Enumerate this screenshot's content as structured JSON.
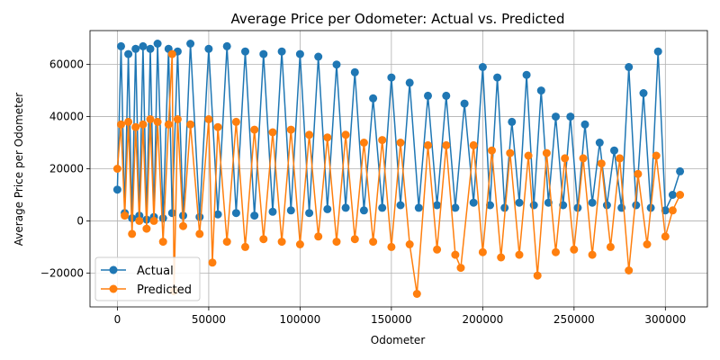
{
  "chart_data": {
    "type": "line",
    "title": "Average Price per Odometer: Actual vs. Predicted",
    "xlabel": "Odometer",
    "ylabel": "Average Price per Odometer",
    "xlim": [
      -15000,
      323000
    ],
    "ylim": [
      -33000,
      73000
    ],
    "xticks": [
      0,
      50000,
      100000,
      150000,
      200000,
      250000,
      300000
    ],
    "yticks": [
      -20000,
      0,
      20000,
      40000,
      60000
    ],
    "grid": true,
    "legend_position": "lower-left",
    "series": [
      {
        "name": "Actual",
        "color": "#1f77b4",
        "marker": "circle",
        "x": [
          0,
          2000,
          4000,
          6000,
          8000,
          10000,
          12000,
          14000,
          16000,
          18000,
          20000,
          22000,
          25000,
          28000,
          30000,
          33000,
          36000,
          40000,
          45000,
          50000,
          55000,
          60000,
          65000,
          70000,
          75000,
          80000,
          85000,
          90000,
          95000,
          100000,
          105000,
          110000,
          115000,
          120000,
          125000,
          130000,
          135000,
          140000,
          145000,
          150000,
          155000,
          160000,
          165000,
          170000,
          175000,
          180000,
          185000,
          190000,
          195000,
          200000,
          204000,
          208000,
          212000,
          216000,
          220000,
          224000,
          228000,
          232000,
          236000,
          240000,
          244000,
          248000,
          252000,
          256000,
          260000,
          264000,
          268000,
          272000,
          276000,
          280000,
          284000,
          288000,
          292000,
          296000,
          300000,
          304000,
          308000
        ],
        "y": [
          12000,
          67000,
          3000,
          64000,
          1000,
          66000,
          2000,
          67000,
          500,
          66000,
          1500,
          68000,
          1000,
          66000,
          3000,
          65000,
          2000,
          68000,
          1500,
          66000,
          2500,
          67000,
          3000,
          65000,
          2000,
          64000,
          3500,
          65000,
          4000,
          64000,
          3000,
          63000,
          4500,
          60000,
          5000,
          57000,
          4000,
          47000,
          5000,
          55000,
          6000,
          53000,
          5000,
          48000,
          6000,
          48000,
          5000,
          45000,
          7000,
          59000,
          6000,
          55000,
          5000,
          38000,
          7000,
          56000,
          6000,
          50000,
          7000,
          40000,
          6000,
          40000,
          5000,
          37000,
          7000,
          30000,
          6000,
          27000,
          5000,
          59000,
          6000,
          49000,
          5000,
          65000,
          4000,
          10000,
          19000
        ]
      },
      {
        "name": "Predicted",
        "color": "#ff7f0e",
        "marker": "circle",
        "x": [
          0,
          2000,
          4000,
          6000,
          8000,
          10000,
          12000,
          14000,
          16000,
          18000,
          20000,
          22000,
          25000,
          28000,
          30000,
          31000,
          33000,
          36000,
          40000,
          45000,
          50000,
          52000,
          55000,
          60000,
          65000,
          70000,
          75000,
          80000,
          85000,
          90000,
          95000,
          100000,
          105000,
          110000,
          115000,
          120000,
          125000,
          130000,
          135000,
          140000,
          145000,
          150000,
          155000,
          160000,
          164000,
          170000,
          175000,
          180000,
          185000,
          188000,
          195000,
          200000,
          205000,
          210000,
          215000,
          220000,
          225000,
          230000,
          235000,
          240000,
          245000,
          250000,
          255000,
          260000,
          265000,
          270000,
          275000,
          280000,
          285000,
          290000,
          295000,
          300000,
          304000,
          308000
        ],
        "y": [
          20000,
          37000,
          2000,
          38000,
          -5000,
          36000,
          0,
          37000,
          -3000,
          39000,
          0,
          38000,
          -8000,
          37000,
          64000,
          -27000,
          39000,
          -2000,
          37000,
          -5000,
          39000,
          -16000,
          36000,
          -8000,
          38000,
          -10000,
          35000,
          -7000,
          34000,
          -8000,
          35000,
          -9000,
          33000,
          -6000,
          32000,
          -8000,
          33000,
          -7000,
          30000,
          -8000,
          31000,
          -10000,
          30000,
          -9000,
          -28000,
          29000,
          -11000,
          29000,
          -13000,
          -18000,
          29000,
          -12000,
          27000,
          -14000,
          26000,
          -13000,
          25000,
          -21000,
          26000,
          -12000,
          24000,
          -11000,
          24000,
          -13000,
          22000,
          -10000,
          24000,
          -19000,
          18000,
          -9000,
          25000,
          -6000,
          4000,
          10000
        ]
      }
    ]
  }
}
